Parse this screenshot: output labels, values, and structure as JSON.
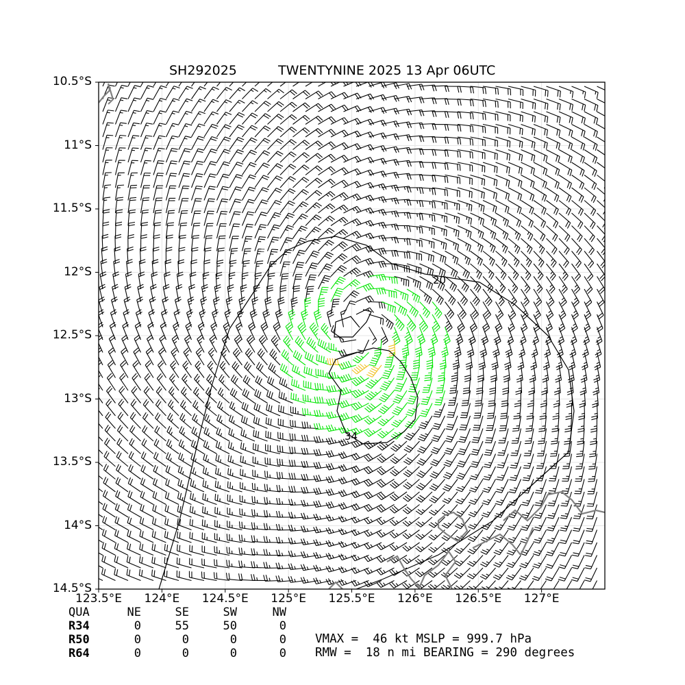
{
  "title": {
    "storm_id": "SH292025",
    "storm_info": "TWENTYNINE 2025 13 Apr 06UTC"
  },
  "map": {
    "lon_range": [
      123.5,
      127.5
    ],
    "lat_range": [
      -14.5,
      -10.5
    ],
    "x_ticks": [
      "123.5°E",
      "124°E",
      "124.5°E",
      "125°E",
      "125.5°E",
      "126°E",
      "126.5°E",
      "127°E"
    ],
    "x_tick_values": [
      123.5,
      124.0,
      124.5,
      125.0,
      125.5,
      126.0,
      126.5,
      127.0
    ],
    "y_ticks": [
      "10.5°S",
      "11°S",
      "11.5°S",
      "12°S",
      "12.5°S",
      "13°S",
      "13.5°S",
      "14°S",
      "14.5°S"
    ],
    "y_tick_values": [
      -10.5,
      -11.0,
      -11.5,
      -12.0,
      -12.5,
      -13.0,
      -13.5,
      -14.0,
      -14.5
    ],
    "contour_labels": [
      "20",
      "34"
    ],
    "barb_colors": {
      "calm": "#000000",
      "r34": "#00e600",
      "r50": "#f0c020"
    },
    "coast_color": "#808080",
    "storm_center": {
      "lon": 125.55,
      "lat": -12.45
    },
    "vmax_kt": 46,
    "rmw_nmi": 18
  },
  "table": {
    "header": [
      "QUA",
      "NE",
      "SE",
      "SW",
      "NW"
    ],
    "rows": [
      {
        "label": "R34",
        "values": [
          "0",
          "55",
          "50",
          "0"
        ]
      },
      {
        "label": "R50",
        "values": [
          "0",
          "0",
          "0",
          "0"
        ]
      },
      {
        "label": "R64",
        "values": [
          "0",
          "0",
          "0",
          "0"
        ]
      }
    ]
  },
  "info": {
    "line1": "VMAX =  46 kt MSLP = 999.7 hPa",
    "line2": "RMW =  18 n mi BEARING = 290 degrees"
  }
}
